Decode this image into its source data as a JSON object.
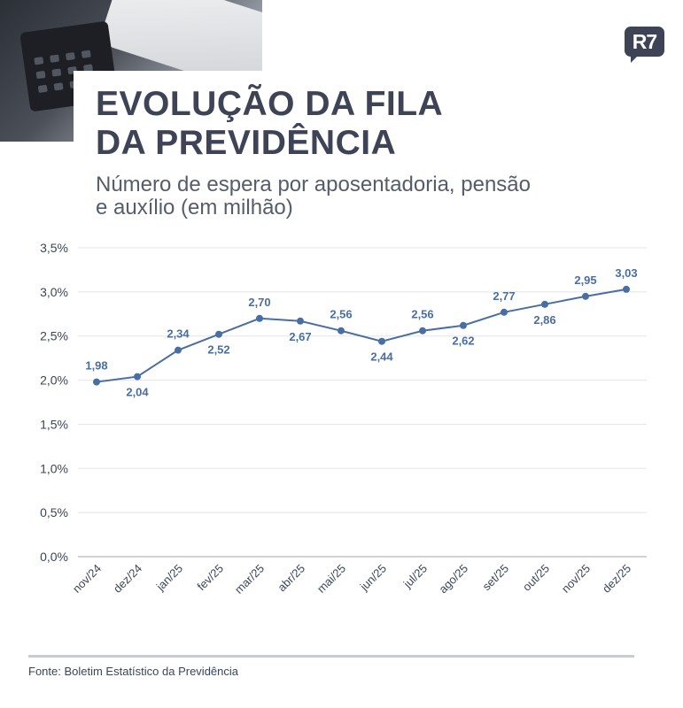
{
  "header": {
    "title_line1": "EVOLUÇÃO DA FILA",
    "title_line2": "DA PREVIDÊNCIA",
    "subtitle_line1": "Número de espera por aposentadoria, pensão",
    "subtitle_line2": "e auxílio (em milhão)",
    "logo_text": "R7"
  },
  "chart_data": {
    "type": "line",
    "title": "EVOLUÇÃO DA FILA DA PREVIDÊNCIA",
    "subtitle": "Número de espera por aposentadoria, pensão e auxílio (em milhão)",
    "xlabel": "",
    "ylabel": "",
    "categories": [
      "nov/24",
      "dez/24",
      "jan/25",
      "fev/25",
      "mar/25",
      "abr/25",
      "mai/25",
      "jun/25",
      "jul/25",
      "ago/25",
      "set/25",
      "out/25",
      "nov/25",
      "dez/25"
    ],
    "values": [
      1.98,
      2.04,
      2.34,
      2.52,
      2.7,
      2.67,
      2.56,
      2.44,
      2.56,
      2.62,
      2.77,
      2.86,
      2.95,
      3.03
    ],
    "value_labels": [
      "1,98",
      "2,04",
      "2,34",
      "2,52",
      "2,70",
      "2,67",
      "2,56",
      "2,44",
      "2,56",
      "2,62",
      "2,77",
      "2,86",
      "2,95",
      "3,03"
    ],
    "label_positions": [
      "above",
      "below",
      "above",
      "below",
      "above",
      "below",
      "above",
      "below",
      "above",
      "below",
      "above",
      "below",
      "above",
      "above"
    ],
    "y_ticks": [
      0,
      0.5,
      1.0,
      1.5,
      2.0,
      2.5,
      3.0,
      3.5
    ],
    "y_tick_labels": [
      "0,0%",
      "0,5%",
      "1,0%",
      "1,5%",
      "2,0%",
      "2,5%",
      "3,0%",
      "3,5%"
    ],
    "ylim": [
      0,
      3.5
    ],
    "grid": true,
    "legend": "none",
    "line_color": "#4a6ea4",
    "label_color": "#4a6ea4"
  },
  "footer": {
    "source": "Fonte: Boletim Estatístico da Previdência"
  }
}
